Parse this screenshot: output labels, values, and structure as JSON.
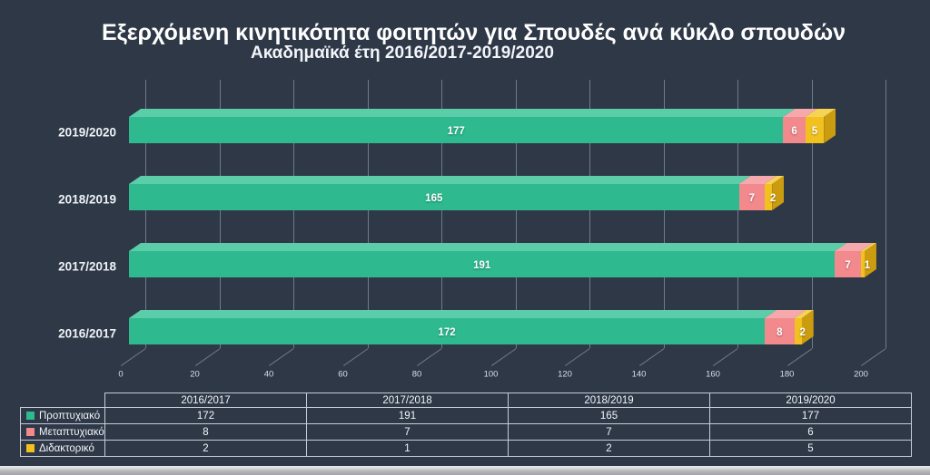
{
  "title": "Εξερχόμενη κινητικότητα φοιτητών για Σπουδές ανά κύκλο σπουδών",
  "subtitle": "Ακαδημαϊκά έτη 2016/2017-2019/2020",
  "chart_data": {
    "type": "bar",
    "orientation": "horizontal",
    "stacked": true,
    "style": "3d",
    "title": "Εξερχόμενη κινητικότητα φοιτητών για Σπουδές ανά κύκλο σπουδών",
    "subtitle": "Ακαδημαϊκά έτη 2016/2017-2019/2020",
    "categories": [
      "2016/2017",
      "2017/2018",
      "2018/2019",
      "2019/2020"
    ],
    "bar_order_top_to_bottom": [
      "2019/2020",
      "2018/2019",
      "2017/2018",
      "2016/2017"
    ],
    "series": [
      {
        "name": "Προπτυχιακό",
        "values": [
          172,
          191,
          165,
          177
        ],
        "color": "#2eba8e",
        "color_light": "#5bcda8",
        "color_dark": "#1e9974"
      },
      {
        "name": "Μεταπτυχιακό",
        "values": [
          8,
          7,
          7,
          6
        ],
        "color": "#f2898d",
        "color_light": "#f6a9ac",
        "color_dark": "#d4737a"
      },
      {
        "name": "Διδακτορικό",
        "values": [
          2,
          1,
          2,
          5
        ],
        "color": "#f1c11f",
        "color_light": "#f5d355",
        "color_dark": "#cc9c10"
      }
    ],
    "xlabel": "",
    "ylabel": "",
    "x_ticks": [
      0,
      20,
      40,
      60,
      80,
      100,
      120,
      140,
      160,
      180,
      200
    ],
    "xlim": [
      0,
      200
    ],
    "grid": true,
    "legend_position": "table-left-column",
    "colors": {
      "background": "#2e3847",
      "gridline": "#a8b2c1",
      "axis_text": "#d9dfe7",
      "category_text": "#eef2f7",
      "bar_label_text": "#ffffff",
      "table_border": "#c6cdd8",
      "table_text": "#f3f6fa",
      "title_text": "#ffffff"
    }
  },
  "data_table": {
    "corner_label": "",
    "column_headers": [
      "2016/2017",
      "2017/2018",
      "2018/2019",
      "2019/2020"
    ],
    "rows": [
      {
        "label": "Προπτυχιακό",
        "swatch_color": "#2eba8e",
        "values": [
          "172",
          "191",
          "165",
          "177"
        ]
      },
      {
        "label": "Μεταπτυχιακό",
        "swatch_color": "#f2898d",
        "values": [
          "8",
          "7",
          "7",
          "6"
        ]
      },
      {
        "label": "Διδακτορικό",
        "swatch_color": "#f1c11f",
        "values": [
          "2",
          "1",
          "2",
          "5"
        ]
      }
    ]
  }
}
